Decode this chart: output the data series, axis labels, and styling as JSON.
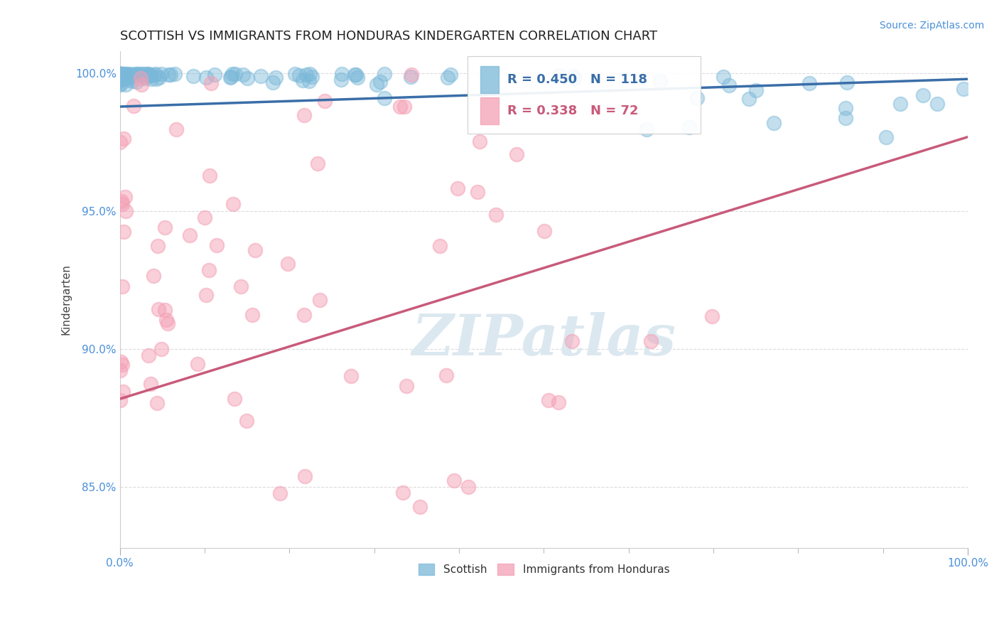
{
  "title": "SCOTTISH VS IMMIGRANTS FROM HONDURAS KINDERGARTEN CORRELATION CHART",
  "source": "Source: ZipAtlas.com",
  "ylabel": "Kindergarten",
  "xlim": [
    0.0,
    1.0
  ],
  "ylim": [
    0.828,
    1.008
  ],
  "yticks": [
    0.85,
    0.9,
    0.95,
    1.0
  ],
  "ytick_labels": [
    "85.0%",
    "90.0%",
    "95.0%",
    "100.0%"
  ],
  "xtick_labels": [
    "0.0%",
    "100.0%"
  ],
  "legend_entries": [
    {
      "label": "Scottish",
      "R": "0.450",
      "N": "118",
      "color": "#7ab8d9"
    },
    {
      "label": "Immigrants from Honduras",
      "R": "0.338",
      "N": "72",
      "color": "#f4a0b5"
    }
  ],
  "scottish_color": "#7ab8d9",
  "honduras_color": "#f4a0b5",
  "trend_blue": "#3a6ea8",
  "trend_pink": "#c85a7a",
  "background_color": "#ffffff",
  "watermark_text": "ZIPatlas",
  "watermark_color": "#dce8f0",
  "grid_color": "#cccccc",
  "grid_style": "--",
  "title_fontsize": 13,
  "label_fontsize": 11,
  "tick_fontsize": 11,
  "source_fontsize": 10,
  "tick_color": "#4a90d9"
}
